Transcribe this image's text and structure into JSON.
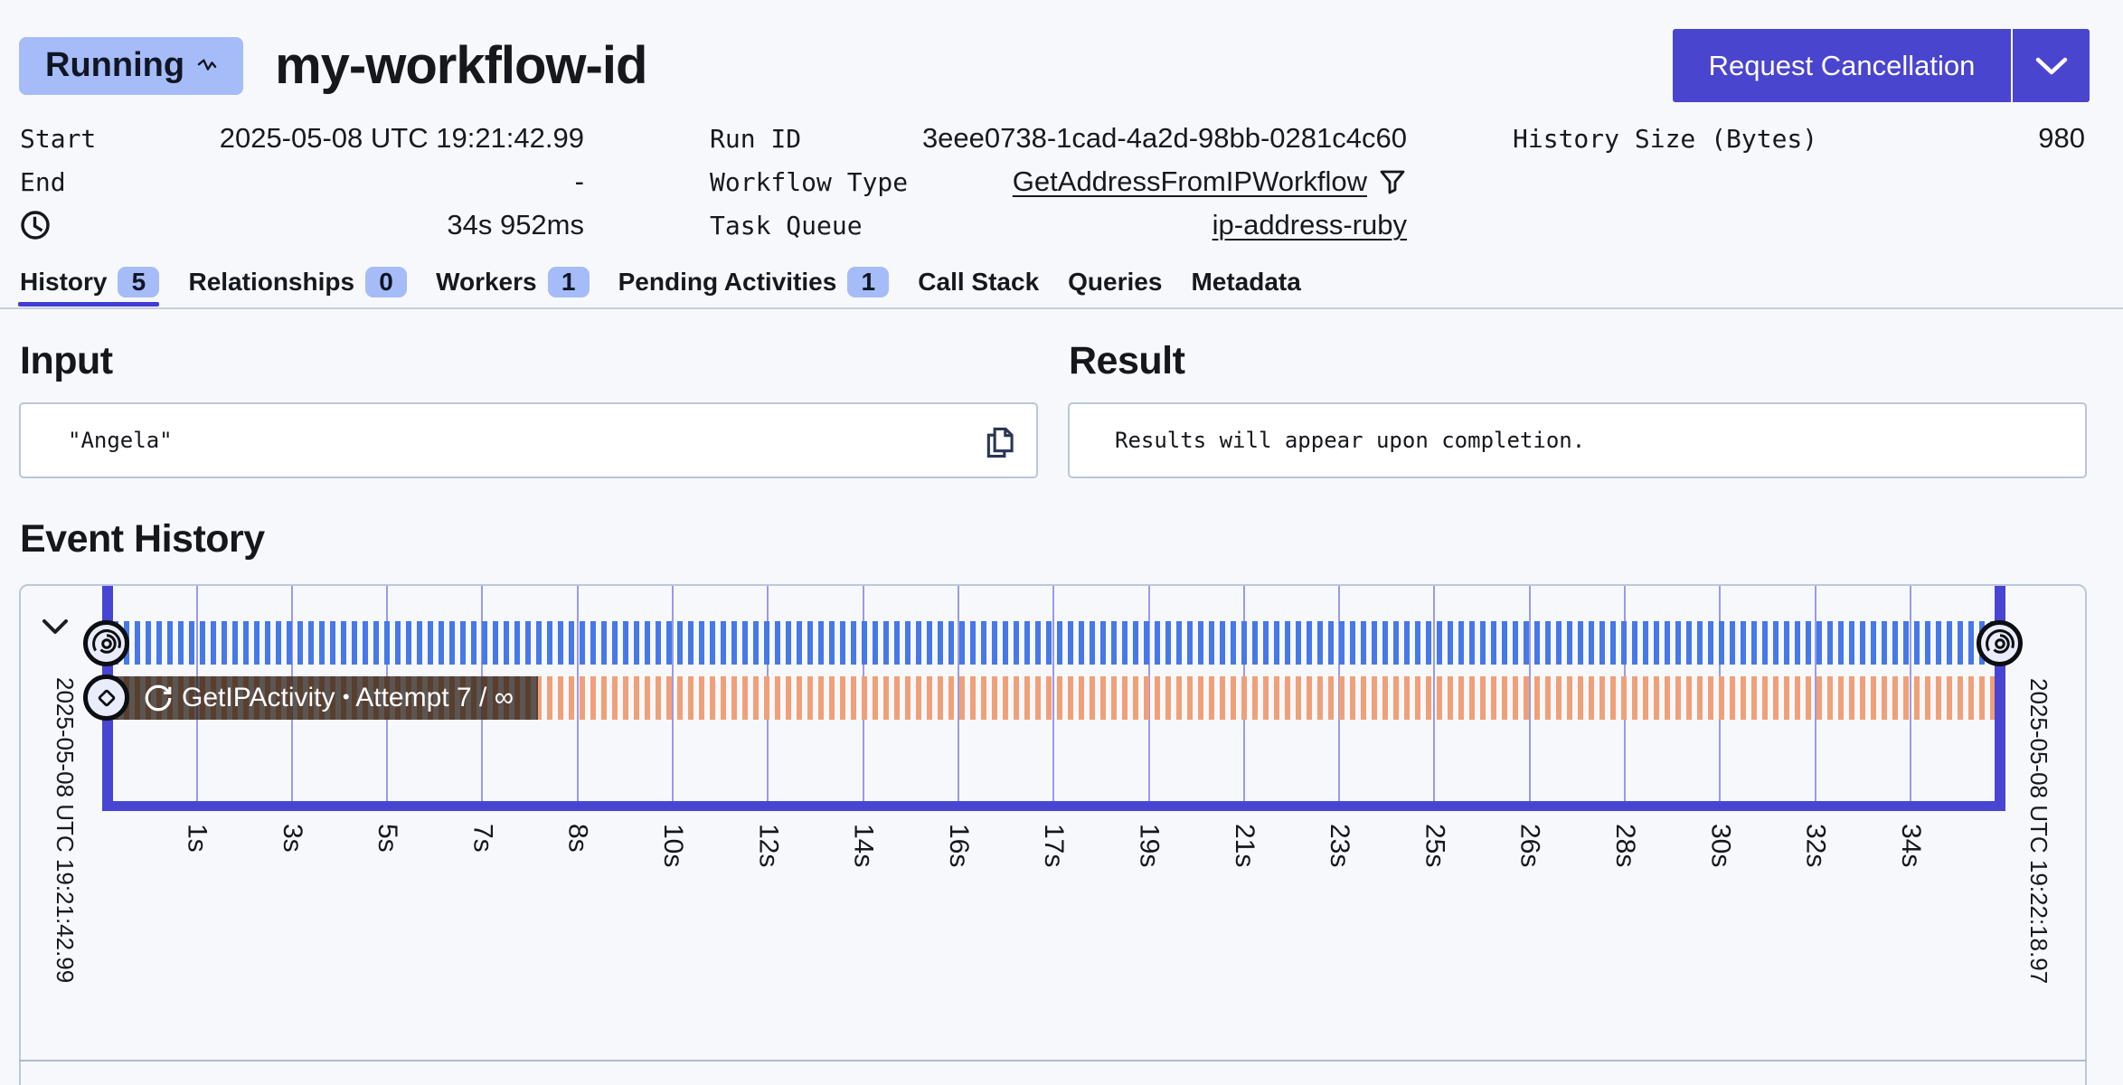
{
  "header": {
    "status": "Running",
    "workflow_id": "my-workflow-id",
    "cancel_button": "Request Cancellation"
  },
  "summary": {
    "start_label": "Start",
    "start_value": "2025-05-08 UTC 19:21:42.99",
    "end_label": "End",
    "end_value": "-",
    "duration_value": "34s 952ms",
    "run_id_label": "Run ID",
    "run_id_value": "3eee0738-1cad-4a2d-98bb-0281c4c60",
    "workflow_type_label": "Workflow Type",
    "workflow_type_value": "GetAddressFromIPWorkflow",
    "task_queue_label": "Task Queue",
    "task_queue_value": "ip-address-ruby",
    "history_size_label": "History Size (Bytes)",
    "history_size_value": "980"
  },
  "tabs": [
    {
      "label": "History",
      "count": "5",
      "active": true
    },
    {
      "label": "Relationships",
      "count": "0",
      "active": false
    },
    {
      "label": "Workers",
      "count": "1",
      "active": false
    },
    {
      "label": "Pending Activities",
      "count": "1",
      "active": false
    },
    {
      "label": "Call Stack",
      "active": false
    },
    {
      "label": "Queries",
      "active": false
    },
    {
      "label": "Metadata",
      "active": false
    }
  ],
  "input_section": {
    "title": "Input",
    "value": "\"Angela\""
  },
  "result_section": {
    "title": "Result",
    "value": "Results will appear upon completion."
  },
  "event_history": {
    "title": "Event History",
    "timeline": {
      "start_time": "2025-05-08 UTC 19:21:42.99",
      "end_time": "2025-05-08 UTC 19:22:18.97",
      "ticks": [
        "1s",
        "3s",
        "5s",
        "7s",
        "8s",
        "10s",
        "12s",
        "14s",
        "16s",
        "17s",
        "19s",
        "21s",
        "23s",
        "25s",
        "26s",
        "28s",
        "30s",
        "32s",
        "34s"
      ],
      "workflow_row": "workflow-execution",
      "activity_name": "GetIPActivity",
      "activity_attempt": "Attempt 7 / ∞"
    }
  },
  "colors": {
    "accent_indigo": "#4845D2",
    "button_indigo": "#4A45CE",
    "badge_blue": "#A6BCF8",
    "workflow_stripe_blue": "#4678E8",
    "activity_stripe_orange": "#F0A078",
    "page_background": "#F7F8FB"
  }
}
